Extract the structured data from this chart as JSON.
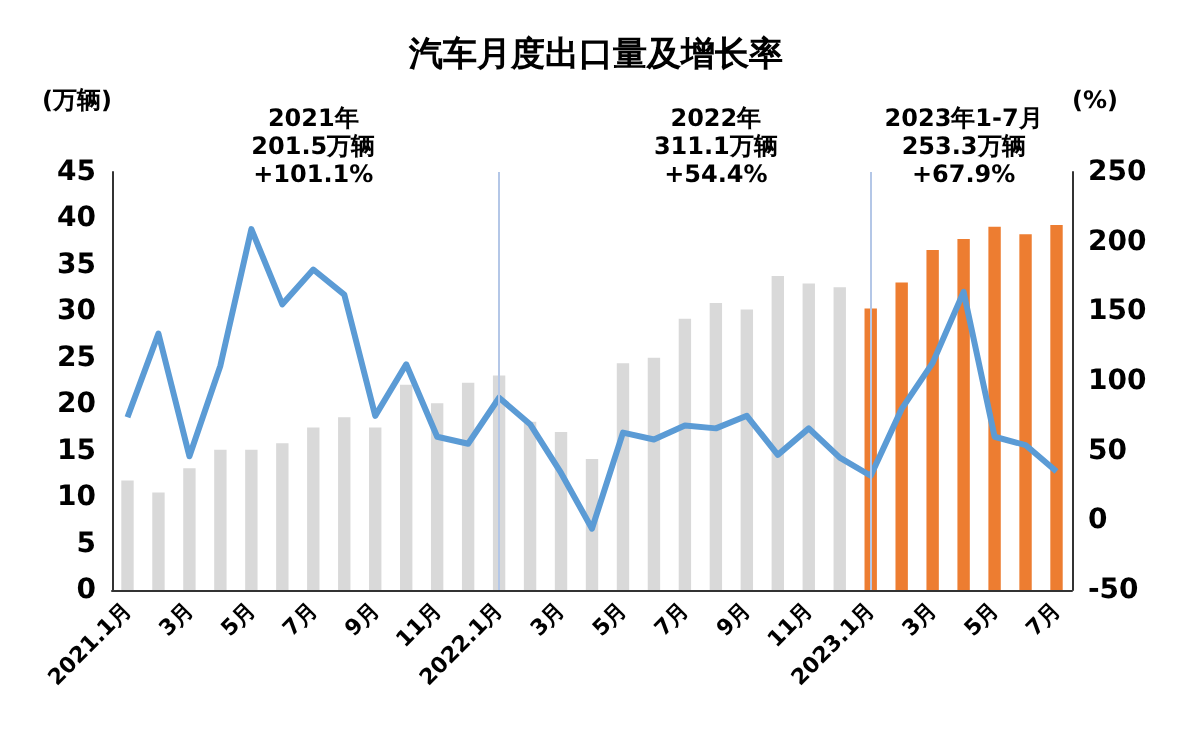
{
  "chart_data": {
    "type": "bar",
    "title": "汽车月度出口量及增长率",
    "ylabel": "(万辆)",
    "y2label": "(%)",
    "categories": [
      "2021.1月",
      null,
      "3月",
      null,
      "5月",
      null,
      "7月",
      null,
      "9月",
      null,
      "11月",
      null,
      "2022.1月",
      null,
      "3月",
      null,
      "5月",
      null,
      "7月",
      null,
      "9月",
      null,
      "11月",
      null,
      "2023.1月",
      null,
      "3月",
      null,
      "5月",
      null,
      "7月"
    ],
    "series": [
      {
        "colors": [
          "#d9d9d9",
          "#d9d9d9",
          "#d9d9d9",
          "#d9d9d9",
          "#d9d9d9",
          "#d9d9d9",
          "#d9d9d9",
          "#d9d9d9",
          "#d9d9d9",
          "#d9d9d9",
          "#d9d9d9",
          "#d9d9d9",
          "#d9d9d9",
          "#d9d9d9",
          "#d9d9d9",
          "#d9d9d9",
          "#d9d9d9",
          "#d9d9d9",
          "#d9d9d9",
          "#d9d9d9",
          "#d9d9d9",
          "#d9d9d9",
          "#d9d9d9",
          "#d9d9d9",
          "#ed7d31",
          "#ed7d31",
          "#ed7d31",
          "#ed7d31",
          "#ed7d31",
          "#ed7d31",
          "#ed7d31"
        ],
        "values": [
          11.8,
          10.5,
          13.1,
          15.1,
          15.1,
          15.8,
          17.5,
          18.6,
          17.5,
          22.1,
          20.1,
          22.3,
          23.1,
          18.1,
          17.0,
          14.1,
          24.4,
          25.0,
          29.2,
          30.9,
          30.2,
          33.8,
          33.0,
          32.6,
          30.3,
          33.1,
          36.6,
          37.8,
          39.1,
          38.3,
          39.3
        ]
      },
      {
        "type": "line",
        "axis": "y2",
        "color": "#5b9bd5",
        "values": [
          74,
          134,
          46,
          111,
          209,
          155,
          180,
          162,
          75,
          112,
          60,
          55,
          88,
          69,
          34,
          -6,
          63,
          58,
          68,
          66,
          75,
          47,
          66,
          45,
          32,
          80,
          113,
          164,
          60,
          54,
          35
        ]
      }
    ],
    "ylim": [
      0,
      45
    ],
    "yticks": [
      0,
      5,
      10,
      15,
      20,
      25,
      30,
      35,
      40,
      45
    ],
    "y2lim": [
      -50,
      250
    ],
    "y2ticks": [
      -50,
      0,
      50,
      100,
      150,
      200,
      250
    ],
    "ref_lines": [
      {
        "axis": "x",
        "value": "2022.1月",
        "color": "#b4c7e7"
      },
      {
        "axis": "x",
        "value": "2023.1月",
        "color": "#b4c7e7"
      }
    ],
    "annotations": [
      "2021年\n201.5万辆\n+101.1%",
      "2022年\n311.1万辆\n+54.4%",
      "2023年1-7月\n253.3万辆\n+67.9%"
    ],
    "grid": false,
    "marker": "none",
    "line_style": "solid"
  }
}
